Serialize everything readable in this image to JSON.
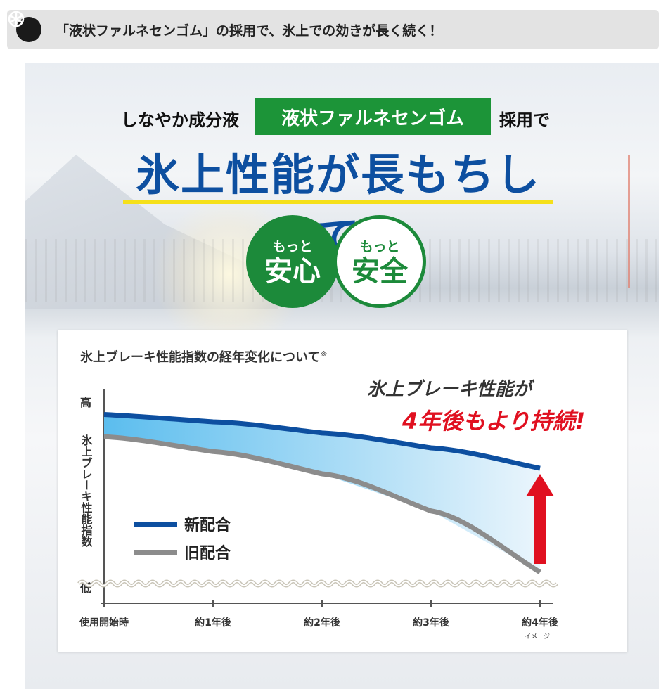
{
  "header": {
    "icon": "tire-icon",
    "text": "「液状ファルネセンゴム」の採用で、氷上での効きが長く続く！"
  },
  "hero": {
    "pre": "しなやか成分液",
    "highlight": "液状ファルネセンゴム",
    "post": "採用で",
    "headline": "氷上性能が長もちして",
    "badges": [
      {
        "small": "もっと",
        "big": "安心"
      },
      {
        "small": "もっと",
        "big": "安全"
      }
    ],
    "colors": {
      "green": "#1c9438",
      "blue": "#0d4fa0",
      "yellow": "#f5e01a"
    }
  },
  "chart_data": {
    "type": "area",
    "title": "氷上ブレーキ性能指数の経年変化について",
    "title_note": "※",
    "ylabel": "氷上ブレーキ性能指数",
    "y_high": "高",
    "y_low": "低",
    "categories": [
      "使用開始時",
      "約1年後",
      "約2年後",
      "約3年後",
      "約4年後"
    ],
    "x_note": "イメージ",
    "series": [
      {
        "name": "新配合",
        "color": "#0d4fa0",
        "values": [
          0.93,
          0.89,
          0.83,
          0.75,
          0.64
        ]
      },
      {
        "name": "旧配合",
        "color": "#8c8c8c",
        "values": [
          0.81,
          0.73,
          0.61,
          0.41,
          0.08
        ]
      }
    ],
    "annotation": {
      "line1": "氷上ブレーキ性能が",
      "line2": "4年後もより持続!"
    },
    "ylim": [
      0,
      1
    ],
    "legend": "left-middle"
  }
}
